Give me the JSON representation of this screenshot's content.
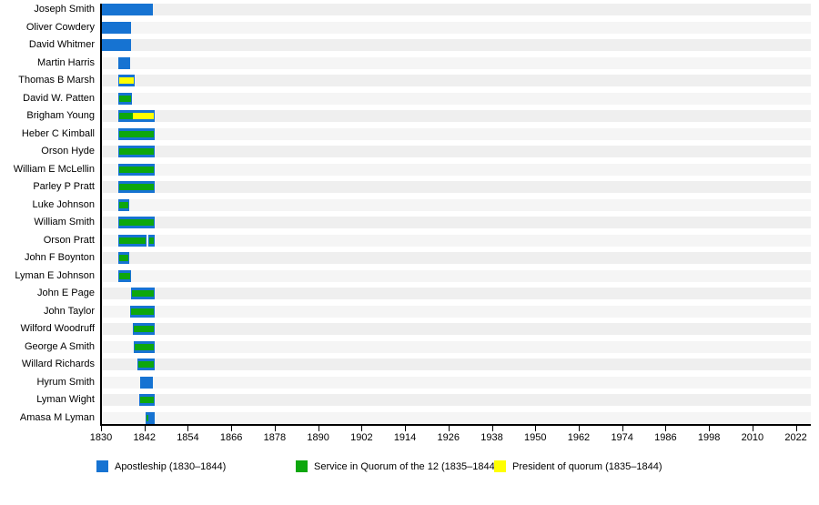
{
  "colors": {
    "blue": "#1673d2",
    "green": "#0da70d",
    "yellow": "#ffff00",
    "band_odd": "#efefef",
    "band_even": "#f5f5f5",
    "axis": "#000000"
  },
  "legend": [
    {
      "key": "blue",
      "label": "Apostleship (1830–1844)"
    },
    {
      "key": "green",
      "label": "Service in Quorum of the 12 (1835–1844)"
    },
    {
      "key": "yellow",
      "label": "President of quorum (1835–1844)"
    }
  ],
  "chart_data": {
    "type": "bar",
    "subtype": "horizontal-timeline-gantt",
    "title": "",
    "xlabel": "",
    "ylabel": "",
    "x_ticks": [
      1830,
      1842,
      1854,
      1866,
      1878,
      1890,
      1902,
      1914,
      1926,
      1938,
      1950,
      1962,
      1974,
      1986,
      1998,
      2010,
      2022
    ],
    "x_range": [
      1830,
      2026
    ],
    "legend_position": "bottom",
    "grid": "row-bands",
    "rows": [
      {
        "name": "Joseph Smith",
        "bars": [
          {
            "from": 1830.0,
            "to": 1844.3
          }
        ],
        "overlays": []
      },
      {
        "name": "Oliver Cowdery",
        "bars": [
          {
            "from": 1830.0,
            "to": 1838.3
          }
        ],
        "overlays": []
      },
      {
        "name": "David Whitmer",
        "bars": [
          {
            "from": 1830.0,
            "to": 1838.3
          }
        ],
        "overlays": []
      },
      {
        "name": "Martin Harris",
        "bars": [
          {
            "from": 1834.8,
            "to": 1838.0
          }
        ],
        "overlays": []
      },
      {
        "name": "Thomas B Marsh",
        "bars": [
          {
            "from": 1834.8,
            "to": 1839.2
          }
        ],
        "overlays": [
          {
            "color": "yellow",
            "from": 1835.0,
            "to": 1839.0
          }
        ]
      },
      {
        "name": "David W. Patten",
        "bars": [
          {
            "from": 1834.8,
            "to": 1838.6
          }
        ],
        "overlays": [
          {
            "color": "green",
            "from": 1835.0,
            "to": 1838.4
          }
        ]
      },
      {
        "name": "Brigham Young",
        "bars": [
          {
            "from": 1834.8,
            "to": 1844.9
          }
        ],
        "overlays": [
          {
            "color": "green",
            "from": 1835.0,
            "to": 1838.7
          },
          {
            "color": "yellow",
            "from": 1838.7,
            "to": 1844.7
          }
        ]
      },
      {
        "name": "Heber C Kimball",
        "bars": [
          {
            "from": 1834.8,
            "to": 1844.9
          }
        ],
        "overlays": [
          {
            "color": "green",
            "from": 1835.0,
            "to": 1844.7
          }
        ]
      },
      {
        "name": "Orson Hyde",
        "bars": [
          {
            "from": 1834.8,
            "to": 1844.9
          }
        ],
        "overlays": [
          {
            "color": "green",
            "from": 1835.0,
            "to": 1844.7
          }
        ]
      },
      {
        "name": "William E McLellin",
        "bars": [
          {
            "from": 1834.8,
            "to": 1844.9
          }
        ],
        "overlays": [
          {
            "color": "green",
            "from": 1835.0,
            "to": 1844.7
          }
        ]
      },
      {
        "name": "Parley P Pratt",
        "bars": [
          {
            "from": 1834.8,
            "to": 1844.9
          }
        ],
        "overlays": [
          {
            "color": "green",
            "from": 1835.0,
            "to": 1844.7
          }
        ]
      },
      {
        "name": "Luke Johnson",
        "bars": [
          {
            "from": 1834.8,
            "to": 1837.8
          }
        ],
        "overlays": [
          {
            "color": "green",
            "from": 1835.0,
            "to": 1837.6
          }
        ]
      },
      {
        "name": "William Smith",
        "bars": [
          {
            "from": 1834.8,
            "to": 1844.9
          }
        ],
        "overlays": [
          {
            "color": "green",
            "from": 1835.0,
            "to": 1844.7
          }
        ]
      },
      {
        "name": "Orson Pratt",
        "bars": [
          {
            "from": 1834.8,
            "to": 1842.6
          },
          {
            "from": 1843.2,
            "to": 1844.9
          }
        ],
        "overlays": [
          {
            "color": "green",
            "from": 1835.0,
            "to": 1842.4
          },
          {
            "color": "green",
            "from": 1843.4,
            "to": 1844.7
          }
        ]
      },
      {
        "name": "John F Boynton",
        "bars": [
          {
            "from": 1834.8,
            "to": 1837.8
          }
        ],
        "overlays": [
          {
            "color": "green",
            "from": 1835.0,
            "to": 1837.6
          }
        ]
      },
      {
        "name": "Lyman E Johnson",
        "bars": [
          {
            "from": 1834.8,
            "to": 1838.2
          }
        ],
        "overlays": [
          {
            "color": "green",
            "from": 1835.0,
            "to": 1838.0
          }
        ]
      },
      {
        "name": "John E Page",
        "bars": [
          {
            "from": 1838.3,
            "to": 1844.9
          }
        ],
        "overlays": [
          {
            "color": "green",
            "from": 1838.5,
            "to": 1844.7
          }
        ]
      },
      {
        "name": "John Taylor",
        "bars": [
          {
            "from": 1838.0,
            "to": 1844.9
          }
        ],
        "overlays": [
          {
            "color": "green",
            "from": 1838.2,
            "to": 1844.7
          }
        ]
      },
      {
        "name": "Wilford Woodruff",
        "bars": [
          {
            "from": 1838.8,
            "to": 1844.9
          }
        ],
        "overlays": [
          {
            "color": "green",
            "from": 1839.0,
            "to": 1844.7
          }
        ]
      },
      {
        "name": "George A Smith",
        "bars": [
          {
            "from": 1839.0,
            "to": 1844.9
          }
        ],
        "overlays": [
          {
            "color": "green",
            "from": 1839.2,
            "to": 1844.7
          }
        ]
      },
      {
        "name": "Willard Richards",
        "bars": [
          {
            "from": 1840.0,
            "to": 1844.9
          }
        ],
        "overlays": [
          {
            "color": "green",
            "from": 1840.2,
            "to": 1844.7
          }
        ]
      },
      {
        "name": "Hyrum Smith",
        "bars": [
          {
            "from": 1840.8,
            "to": 1844.3
          }
        ],
        "overlays": []
      },
      {
        "name": "Lyman Wight",
        "bars": [
          {
            "from": 1840.6,
            "to": 1844.9
          }
        ],
        "overlays": [
          {
            "color": "green",
            "from": 1840.8,
            "to": 1844.7
          }
        ]
      },
      {
        "name": "Amasa M Lyman",
        "bars": [
          {
            "from": 1842.4,
            "to": 1844.9
          }
        ],
        "overlays": [
          {
            "color": "green",
            "from": 1842.6,
            "to": 1843.2
          }
        ]
      }
    ]
  }
}
